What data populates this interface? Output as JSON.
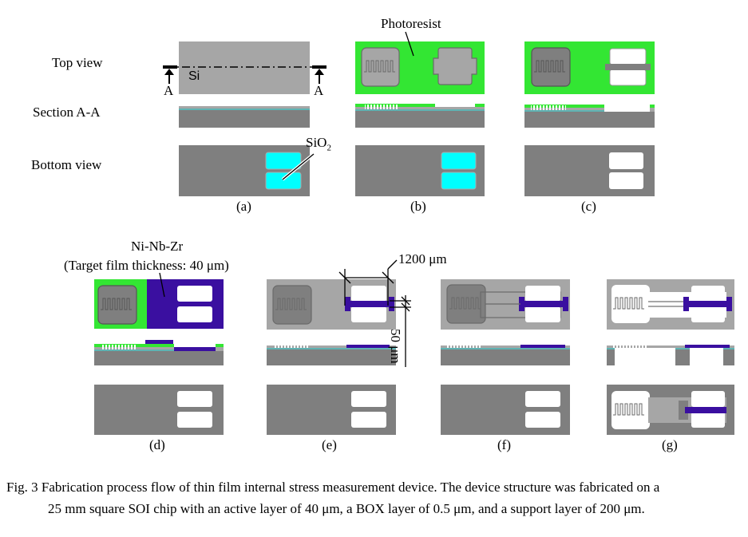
{
  "row_labels": {
    "top_view": "Top view",
    "section": "Section A-A",
    "bottom_view": "Bottom view"
  },
  "panel_labels": {
    "a": "(a)",
    "b": "(b)",
    "c": "(c)",
    "d": "(d)",
    "e": "(e)",
    "f": "(f)",
    "g": "(g)"
  },
  "annotations": {
    "photoresist": "Photoresist",
    "si": "Si",
    "section_marker": "A",
    "sio2_base": "SiO",
    "sio2_sub": "2",
    "ni_nb_zr": "Ni-Nb-Zr",
    "target_thickness": "(Target film thickness: 40 μm)",
    "dim_width": "1200 μm",
    "dim_height": "50 μm"
  },
  "caption": {
    "line1": "Fig. 3  Fabrication process flow of thin film internal stress measurement device. The device structure was fabricated on a",
    "line2": "25 mm square SOI chip with an active layer of 40 μm, a BOX layer of 0.5 μm, and a support layer of 200 μm."
  },
  "colors": {
    "si_light": "#a6a6a6",
    "si_dark": "#7f7f7f",
    "photoresist": "#33e633",
    "sio2": "#00ffff",
    "ni_nb_zr": "#3a0fa0",
    "box_layer": "#5fb3b3",
    "background": "#ffffff"
  }
}
